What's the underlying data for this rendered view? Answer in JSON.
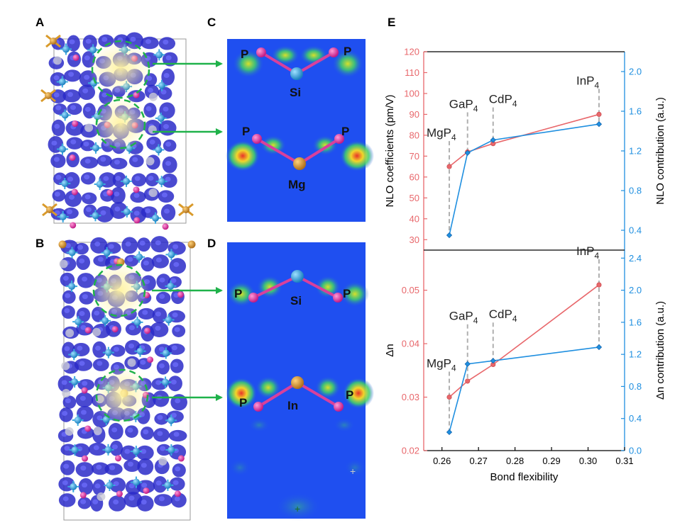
{
  "panels": {
    "A": "A",
    "B": "B",
    "C": "C",
    "D": "D",
    "E": "E"
  },
  "colors": {
    "red_series": "#e8676b",
    "blue_series": "#1f8fe0",
    "map_bg": "#1f4ff0",
    "lobe_core": "#e8332a",
    "lobe_mid": "#f2d52a",
    "lobe_edge": "#3fcf6a",
    "arrow": "#1fb24a",
    "atom_p": "#e03aa5",
    "atom_si": "#3aa9e0",
    "atom_metal": "#d99a2a",
    "iso_blue": "#2a2ac8"
  },
  "atoms_C": {
    "p_left": "P",
    "p_right": "P",
    "center_top": "Si",
    "p_left_2": "P",
    "p_right_2": "P",
    "center_bottom": "Mg"
  },
  "atoms_D": {
    "p_left": "P",
    "p_right": "P",
    "center_top": "Si",
    "p_left_2": "P",
    "p_right_2": "P",
    "center_bottom": "In"
  },
  "chart_data": [
    {
      "type": "line",
      "panel": "E-top",
      "x": [
        0.262,
        0.267,
        0.274,
        0.303
      ],
      "point_labels": [
        "MgP4",
        "GaP4",
        "CdP4",
        "InP4"
      ],
      "series": [
        {
          "name": "NLO coefficients (pm/V)",
          "axis": "left",
          "color": "#e8676b",
          "marker": "circle",
          "values": [
            65,
            72,
            76,
            90
          ]
        },
        {
          "name": "NLO contribution (a.u.)",
          "axis": "right",
          "color": "#1f8fe0",
          "marker": "diamond",
          "values": [
            0.35,
            1.18,
            1.31,
            1.47
          ]
        }
      ],
      "xlim": [
        0.255,
        0.31
      ],
      "ylim_left": [
        25,
        120
      ],
      "ylim_right": [
        0.2,
        2.2
      ],
      "yticks_left": [
        "30",
        "40",
        "50",
        "60",
        "70",
        "80",
        "90",
        "100",
        "110",
        "120"
      ],
      "yticks_right": [
        "0.4",
        "0.8",
        "1.2",
        "1.6",
        "2.0"
      ],
      "ylabel_left": "NLO coefficients (pm/V)",
      "ylabel_right": "NLO contribution (a.u.)",
      "grid": false
    },
    {
      "type": "line",
      "panel": "E-bottom",
      "x": [
        0.262,
        0.267,
        0.274,
        0.303
      ],
      "point_labels": [
        "MgP4",
        "GaP4",
        "CdP4",
        "InP4"
      ],
      "series": [
        {
          "name": "Δn",
          "axis": "left",
          "color": "#e8676b",
          "marker": "circle",
          "values": [
            0.03,
            0.033,
            0.0361,
            0.051
          ]
        },
        {
          "name": "Δn contribution (a.u.)",
          "axis": "right",
          "color": "#1f8fe0",
          "marker": "diamond",
          "values": [
            0.23,
            1.08,
            1.12,
            1.29
          ]
        }
      ],
      "xlim": [
        0.255,
        0.31
      ],
      "ylim_left": [
        0.02,
        0.0575
      ],
      "ylim_right": [
        0.0,
        2.5
      ],
      "xticks": [
        "0.26",
        "0.27",
        "0.28",
        "0.29",
        "0.30",
        "0.31"
      ],
      "yticks_left": [
        "0.02",
        "0.03",
        "0.04",
        "0.05"
      ],
      "yticks_right": [
        "0.0",
        "0.4",
        "0.8",
        "1.2",
        "1.6",
        "2.0",
        "2.4"
      ],
      "xlabel": "Bond flexibility",
      "ylabel_left": "Δn",
      "ylabel_right": "Δn contribution (a.u.)",
      "grid": false
    }
  ]
}
